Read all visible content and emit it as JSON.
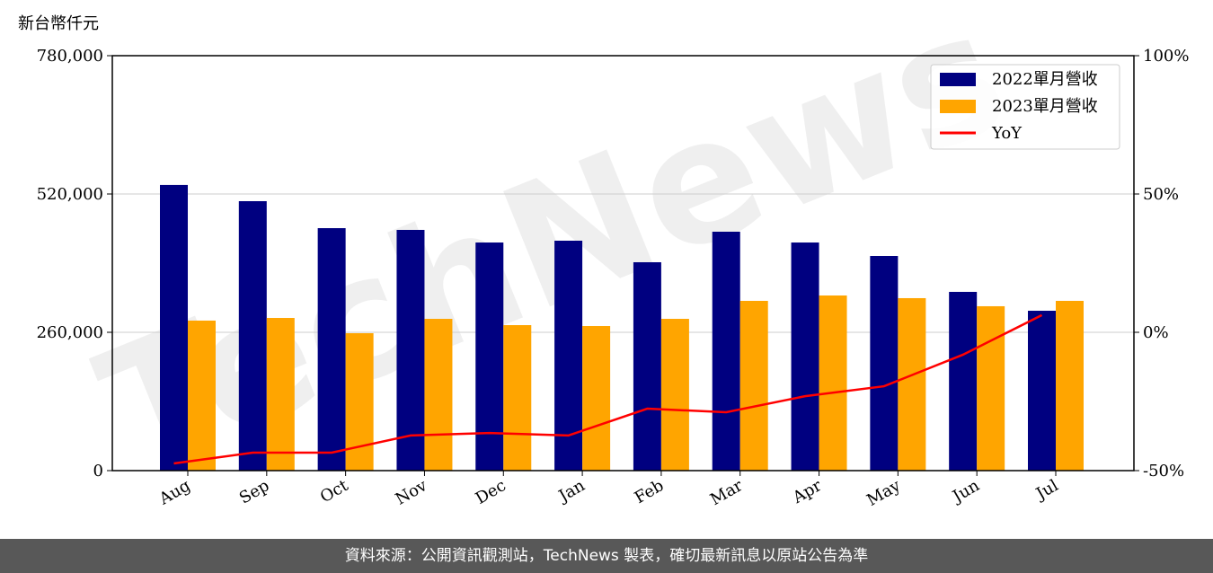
{
  "chart_data": {
    "type": "bar-line",
    "y_label": "新台幣仟元",
    "watermark": "TechNews",
    "categories": [
      "Aug",
      "Sep",
      "Oct",
      "Nov",
      "Dec",
      "Jan",
      "Feb",
      "Mar",
      "Apr",
      "May",
      "Jun",
      "Jul"
    ],
    "series": [
      {
        "name": "2022單月營收",
        "color": "#000080",
        "type": "bar",
        "values": [
          537000,
          506500,
          455800,
          452500,
          428800,
          432200,
          391700,
          449100,
          428800,
          403500,
          336000,
          300500
        ]
      },
      {
        "name": "2023單月營收",
        "color": "#ffa500",
        "type": "bar",
        "values": [
          282000,
          287000,
          258300,
          285300,
          273500,
          271800,
          285300,
          319100,
          329200,
          324200,
          309000,
          319100
        ]
      },
      {
        "name": "YoY",
        "color": "#ff0000",
        "type": "line",
        "axis": "y2",
        "values": [
          -47.4,
          -43.5,
          -43.5,
          -37.3,
          -36.4,
          -37.3,
          -27.6,
          -28.9,
          -23.1,
          -19.5,
          -8.1,
          6.2
        ]
      }
    ],
    "ylim": [
      0,
      780000
    ],
    "yticks": [
      {
        "value": 0,
        "label": "0"
      },
      {
        "value": 260000,
        "label": "260,000"
      },
      {
        "value": 520000,
        "label": "520,000"
      },
      {
        "value": 780000,
        "label": "780,000"
      }
    ],
    "y2lim": [
      -50,
      100
    ],
    "y2ticks": [
      {
        "value": -50,
        "label": "-50%"
      },
      {
        "value": 0,
        "label": "0%"
      },
      {
        "value": 50,
        "label": "50%"
      },
      {
        "value": 100,
        "label": "100%"
      }
    ],
    "grid": true,
    "legend": "upper right",
    "footer": "資料來源：公開資訊觀測站，TechNews 製表，確切最新訊息以原站公告為準"
  }
}
